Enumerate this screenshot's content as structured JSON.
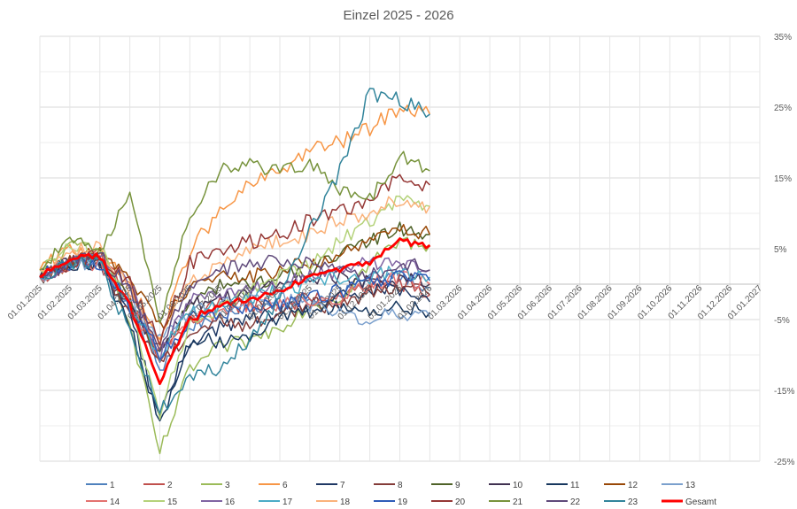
{
  "chart_data": {
    "type": "line",
    "title": "Einzel 2025 - 2026",
    "xlabel": "",
    "ylabel": "",
    "x_ticks": [
      "01.01.2025",
      "01.02.2025",
      "01.03.2025",
      "01.04.2025",
      "01.05.2025",
      "01.06.2025",
      "01.07.2025",
      "01.08.2025",
      "01.09.2025",
      "01.10.2025",
      "01.11.2025",
      "01.12.2025",
      "01.01.2026",
      "01.02.2026",
      "01.03.2026",
      "01.04.2026",
      "01.05.2026",
      "01.06.2026",
      "01.07.2026",
      "01.08.2026",
      "01.09.2026",
      "01.10.2026",
      "01.11.2026",
      "01.12.2026",
      "01.01.2027"
    ],
    "y_ticks": [
      "35%",
      "25%",
      "15%",
      "5%",
      "-5%",
      "-15%",
      "-25%"
    ],
    "y_tick_values": [
      0.35,
      0.25,
      0.15,
      0.05,
      -0.05,
      -0.15,
      -0.25
    ],
    "ylim": [
      -0.25,
      0.35
    ],
    "xlim_months": [
      0,
      24
    ],
    "y_axis_position": "right",
    "grid": true,
    "legend_position": "bottom",
    "series": [
      {
        "name": "1",
        "color": "#4f81bd",
        "values": [
          0.01,
          0.03,
          0.03,
          -0.03,
          -0.12,
          -0.06,
          -0.04,
          -0.03,
          -0.03,
          -0.02,
          -0.02,
          0.01,
          0.015,
          -0.005
        ]
      },
      {
        "name": "2",
        "color": "#c0504d",
        "values": [
          0.01,
          0.03,
          0.04,
          -0.02,
          -0.11,
          -0.05,
          -0.03,
          -0.03,
          -0.03,
          -0.02,
          -0.02,
          0.0,
          0.0,
          -0.015
        ]
      },
      {
        "name": "3",
        "color": "#9bbb59",
        "values": [
          0.02,
          0.05,
          0.06,
          -0.06,
          -0.24,
          -0.12,
          -0.09,
          -0.08,
          -0.06,
          -0.03,
          -0.02,
          0.03,
          0.06,
          0.055
        ]
      },
      {
        "name": "6",
        "color": "#f79646",
        "values": [
          0.02,
          0.05,
          0.04,
          0.0,
          -0.08,
          0.05,
          0.1,
          0.14,
          0.16,
          0.19,
          0.2,
          0.22,
          0.25,
          0.24
        ]
      },
      {
        "name": "7",
        "color": "#1f3864",
        "values": [
          0.01,
          0.03,
          0.03,
          -0.04,
          -0.19,
          -0.08,
          -0.06,
          -0.05,
          -0.04,
          -0.03,
          -0.02,
          -0.01,
          -0.01,
          -0.025
        ]
      },
      {
        "name": "8",
        "color": "#843c39",
        "values": [
          0.01,
          0.03,
          0.03,
          -0.04,
          -0.11,
          -0.07,
          -0.05,
          -0.06,
          -0.04,
          -0.03,
          -0.03,
          -0.01,
          0.0,
          -0.015
        ]
      },
      {
        "name": "9",
        "color": "#4f6228",
        "values": [
          0.01,
          0.03,
          0.04,
          -0.02,
          -0.1,
          -0.03,
          0.0,
          0.0,
          0.01,
          0.02,
          0.04,
          0.06,
          0.08,
          0.07
        ]
      },
      {
        "name": "10",
        "color": "#403151",
        "values": [
          0.01,
          0.03,
          0.03,
          -0.03,
          -0.09,
          -0.03,
          -0.02,
          -0.01,
          0.0,
          0.01,
          0.01,
          0.0,
          0.01,
          0.0
        ]
      },
      {
        "name": "11",
        "color": "#17375e",
        "values": [
          0.01,
          0.03,
          0.03,
          -0.06,
          -0.2,
          -0.08,
          -0.08,
          -0.07,
          -0.05,
          -0.04,
          -0.03,
          -0.04,
          -0.03,
          -0.04
        ]
      },
      {
        "name": "12",
        "color": "#984807",
        "values": [
          0.01,
          0.03,
          0.05,
          0.01,
          -0.06,
          0.0,
          0.01,
          0.01,
          0.02,
          0.03,
          0.04,
          0.06,
          0.08,
          0.07
        ]
      },
      {
        "name": "13",
        "color": "#7ba0cd",
        "values": [
          0.01,
          0.03,
          0.03,
          -0.02,
          -0.08,
          -0.04,
          -0.03,
          -0.02,
          -0.02,
          -0.03,
          -0.04,
          -0.05,
          -0.04,
          -0.045
        ]
      },
      {
        "name": "14",
        "color": "#e3726f",
        "values": [
          0.01,
          0.03,
          0.03,
          -0.03,
          -0.1,
          -0.05,
          -0.04,
          -0.03,
          -0.03,
          -0.02,
          -0.02,
          0.0,
          0.01,
          0.0
        ]
      },
      {
        "name": "15",
        "color": "#b4d27a",
        "values": [
          0.02,
          0.05,
          0.05,
          -0.03,
          -0.18,
          -0.06,
          -0.03,
          -0.01,
          0.01,
          0.03,
          0.06,
          0.09,
          0.12,
          0.11
        ]
      },
      {
        "name": "16",
        "color": "#8064a2",
        "values": [
          0.01,
          0.03,
          0.04,
          0.0,
          -0.1,
          -0.02,
          -0.02,
          -0.01,
          0.0,
          0.01,
          0.02,
          0.03,
          0.03,
          0.02
        ]
      },
      {
        "name": "17",
        "color": "#4bacc6",
        "values": [
          0.01,
          0.03,
          0.03,
          -0.03,
          -0.1,
          -0.04,
          -0.03,
          -0.02,
          -0.01,
          0.0,
          0.01,
          0.01,
          0.02,
          0.01
        ]
      },
      {
        "name": "18",
        "color": "#fab27b",
        "values": [
          0.02,
          0.05,
          0.05,
          -0.01,
          -0.08,
          0.0,
          0.03,
          0.05,
          0.06,
          0.07,
          0.09,
          0.1,
          0.12,
          0.11
        ]
      },
      {
        "name": "19",
        "color": "#2e5cb8",
        "values": [
          0.01,
          0.03,
          0.03,
          -0.03,
          -0.1,
          -0.05,
          -0.04,
          -0.03,
          -0.03,
          -0.02,
          -0.01,
          0.0,
          0.01,
          0.005
        ]
      },
      {
        "name": "20",
        "color": "#953735",
        "values": [
          0.01,
          0.03,
          0.04,
          0.0,
          -0.08,
          0.03,
          0.05,
          0.06,
          0.07,
          0.09,
          0.1,
          0.12,
          0.15,
          0.14
        ]
      },
      {
        "name": "21",
        "color": "#77933c",
        "values": [
          0.02,
          0.06,
          0.05,
          0.12,
          -0.05,
          0.1,
          0.16,
          0.17,
          0.16,
          0.17,
          0.13,
          0.12,
          0.18,
          0.16
        ]
      },
      {
        "name": "22",
        "color": "#5f497a",
        "values": [
          0.01,
          0.03,
          0.04,
          -0.01,
          -0.09,
          0.0,
          0.02,
          0.03,
          0.03,
          0.03,
          0.02,
          0.01,
          0.03,
          0.02
        ]
      },
      {
        "name": "23",
        "color": "#31849b",
        "values": [
          0.01,
          0.03,
          0.03,
          -0.07,
          -0.18,
          -0.13,
          -0.12,
          -0.08,
          -0.02,
          0.08,
          0.16,
          0.27,
          0.26,
          0.24
        ]
      },
      {
        "name": "Gesamt",
        "color": "#ff0000",
        "values": [
          0.01,
          0.035,
          0.04,
          -0.03,
          -0.14,
          -0.05,
          -0.03,
          -0.02,
          -0.01,
          0.01,
          0.02,
          0.03,
          0.06,
          0.055
        ]
      }
    ]
  }
}
